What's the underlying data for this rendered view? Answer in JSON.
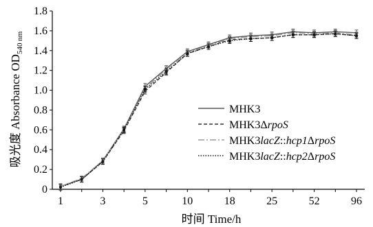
{
  "chart_data": {
    "type": "line",
    "title": "",
    "xlabel": "时间 Time/h",
    "ylabel_main": "吸光度 Absorbance OD",
    "ylabel_sub": "540 nm",
    "x_tick_labels": [
      "1",
      "3",
      "5",
      "10",
      "18",
      "25",
      "52",
      "96"
    ],
    "y_tick_labels": [
      "0",
      "0.2",
      "0.4",
      "0.6",
      "0.8",
      "1.0",
      "1.2",
      "1.4",
      "1.6",
      "1.8"
    ],
    "ylim": [
      0,
      1.8
    ],
    "x_points": [
      1,
      2,
      3,
      4,
      5,
      7,
      10,
      14,
      18,
      22,
      25,
      30,
      52,
      70,
      96
    ],
    "grid": false,
    "legend_position": "right",
    "series": [
      {
        "name_parts": [
          {
            "t": "MHK3",
            "i": false
          }
        ],
        "dash": "solid",
        "color": "#555555",
        "values": [
          0.03,
          0.1,
          0.29,
          0.61,
          1.04,
          1.22,
          1.39,
          1.46,
          1.53,
          1.55,
          1.56,
          1.59,
          1.58,
          1.59,
          1.58
        ]
      },
      {
        "name_parts": [
          {
            "t": "MHK3Δ",
            "i": false
          },
          {
            "t": "rpoS",
            "i": true
          }
        ],
        "dash": "dashed",
        "color": "#333333",
        "values": [
          0.03,
          0.1,
          0.28,
          0.59,
          0.99,
          1.18,
          1.37,
          1.44,
          1.51,
          1.52,
          1.53,
          1.56,
          1.56,
          1.57,
          1.55
        ]
      },
      {
        "name_parts": [
          {
            "t": "MHK3",
            "i": false
          },
          {
            "t": "lacZ",
            "i": true
          },
          {
            "t": "::",
            "i": false
          },
          {
            "t": "hcp1",
            "i": true
          },
          {
            "t": "Δ",
            "i": false
          },
          {
            "t": "rpoS",
            "i": true
          }
        ],
        "dash": "dashdot",
        "color": "#999999",
        "values": [
          0.03,
          0.11,
          0.29,
          0.6,
          1.02,
          1.21,
          1.38,
          1.45,
          1.52,
          1.54,
          1.55,
          1.58,
          1.57,
          1.58,
          1.56
        ]
      },
      {
        "name_parts": [
          {
            "t": "MHK3",
            "i": false
          },
          {
            "t": "lacZ",
            "i": true
          },
          {
            "t": "::",
            "i": false
          },
          {
            "t": "hcp2",
            "i": true
          },
          {
            "t": "Δ",
            "i": false
          },
          {
            "t": "rpoS",
            "i": true
          }
        ],
        "dash": "dotted",
        "color": "#111111",
        "values": [
          0.02,
          0.1,
          0.28,
          0.6,
          1.01,
          1.19,
          1.37,
          1.44,
          1.5,
          1.52,
          1.53,
          1.56,
          1.56,
          1.57,
          1.55
        ]
      }
    ]
  }
}
